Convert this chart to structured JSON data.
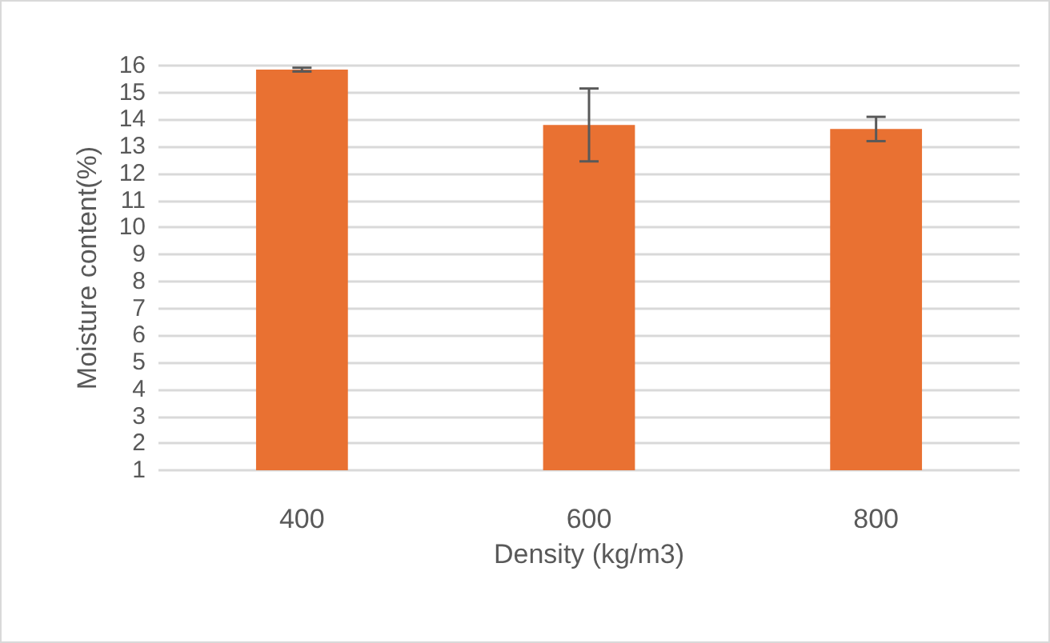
{
  "chart_data": {
    "type": "bar",
    "xlabel": "Density (kg/m3)",
    "ylabel": "Moisture content(%)",
    "categories": [
      "400",
      "600",
      "800"
    ],
    "values": [
      15.85,
      13.8,
      13.65
    ],
    "errors": [
      0.07,
      1.35,
      0.45
    ],
    "color": "#e97132",
    "ylim": [
      1,
      16
    ],
    "yticks": [
      1,
      2,
      3,
      4,
      5,
      6,
      7,
      8,
      9,
      10,
      11,
      12,
      13,
      14,
      15,
      16
    ],
    "grid": "y"
  }
}
